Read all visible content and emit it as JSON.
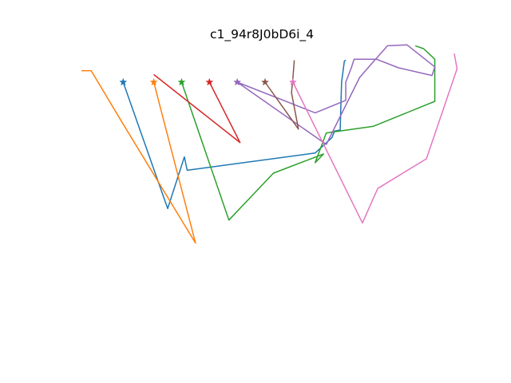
{
  "chart_data": {
    "type": "line",
    "title": "c1_94r8J0bD6i_4",
    "axes_visible": false,
    "grid": false,
    "legend": "none",
    "xlim": [
      0,
      13
    ],
    "ylim": [
      -26,
      4
    ],
    "marker_row_y": 0,
    "series": [
      {
        "color": "#1f77b4",
        "x": [
          1.5,
          3.1,
          3.7,
          3.8,
          8.4,
          9.0,
          9.1,
          9.3,
          9.35,
          9.45,
          9.5
        ],
        "y": [
          0,
          -13.2,
          -7.8,
          -9.2,
          -7.4,
          -5.8,
          -5.1,
          -5.0,
          0,
          2.2,
          2.3
        ]
      },
      {
        "color": "#ff7f0e",
        "x": [
          2.6,
          4.1,
          1.4,
          0.35,
          0.0
        ],
        "y": [
          0,
          -16.8,
          -3.9,
          1.2,
          1.2
        ]
      },
      {
        "color": "#2ca02c",
        "x": [
          3.6,
          5.3,
          6.9,
          8.7,
          8.4,
          8.8,
          10.5,
          12.7,
          12.7,
          12.7,
          12.3,
          12.0
        ],
        "y": [
          0,
          -14.4,
          -9.5,
          -7.5,
          -8.4,
          -5.3,
          -4.6,
          -2.0,
          2.1,
          2.4,
          3.5,
          3.8
        ]
      },
      {
        "color": "#d62728",
        "x": [
          4.6,
          5.7,
          2.6
        ],
        "y": [
          0,
          -6.3,
          0.8
        ]
      },
      {
        "color": "#9467bd",
        "x": [
          5.6,
          8.8,
          10.0,
          10.3,
          11.0,
          11.7,
          12.7,
          12.6,
          11.4,
          10.6,
          9.8,
          9.7,
          9.5,
          9.5,
          8.4,
          5.6
        ],
        "y": [
          0,
          -6.5,
          0.5,
          1.5,
          3.8,
          3.9,
          1.6,
          0.7,
          1.5,
          2.4,
          2.4,
          1.5,
          0,
          -1.9,
          -3.2,
          0.0
        ]
      },
      {
        "color": "#8c564b",
        "x": [
          6.6,
          7.8,
          7.55,
          7.6,
          7.65
        ],
        "y": [
          0,
          -4.9,
          -1.1,
          0.4,
          2.3
        ]
      },
      {
        "color": "#e377c2",
        "x": [
          7.6,
          10.1,
          10.45,
          10.65,
          12.4,
          13.5,
          13.4
        ],
        "y": [
          0,
          -14.7,
          -12.4,
          -11.1,
          -8.0,
          1.4,
          3.0
        ]
      }
    ]
  }
}
